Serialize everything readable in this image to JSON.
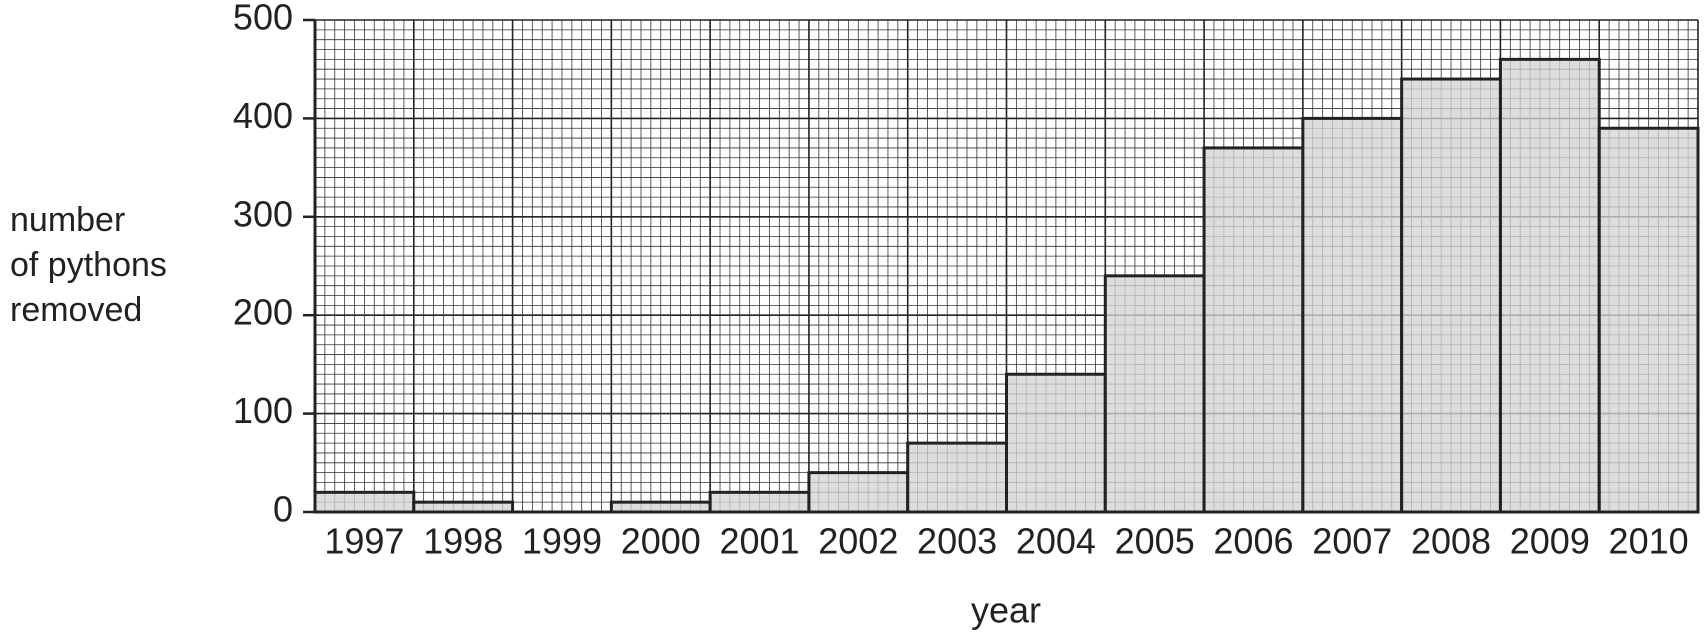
{
  "chart_data": {
    "type": "bar",
    "ylabel": "number\nof pythons\nremoved",
    "xlabel": "year",
    "categories": [
      "1997",
      "1998",
      "1999",
      "2000",
      "2001",
      "2002",
      "2003",
      "2004",
      "2005",
      "2006",
      "2007",
      "2008",
      "2009",
      "2010"
    ],
    "values": [
      20,
      10,
      0,
      10,
      20,
      40,
      70,
      140,
      240,
      370,
      400,
      440,
      460,
      390
    ],
    "color": "#d3d3d3",
    "ylim": [
      0,
      500
    ],
    "yticks": [
      0,
      100,
      200,
      300,
      400,
      500
    ],
    "grid": true
  }
}
